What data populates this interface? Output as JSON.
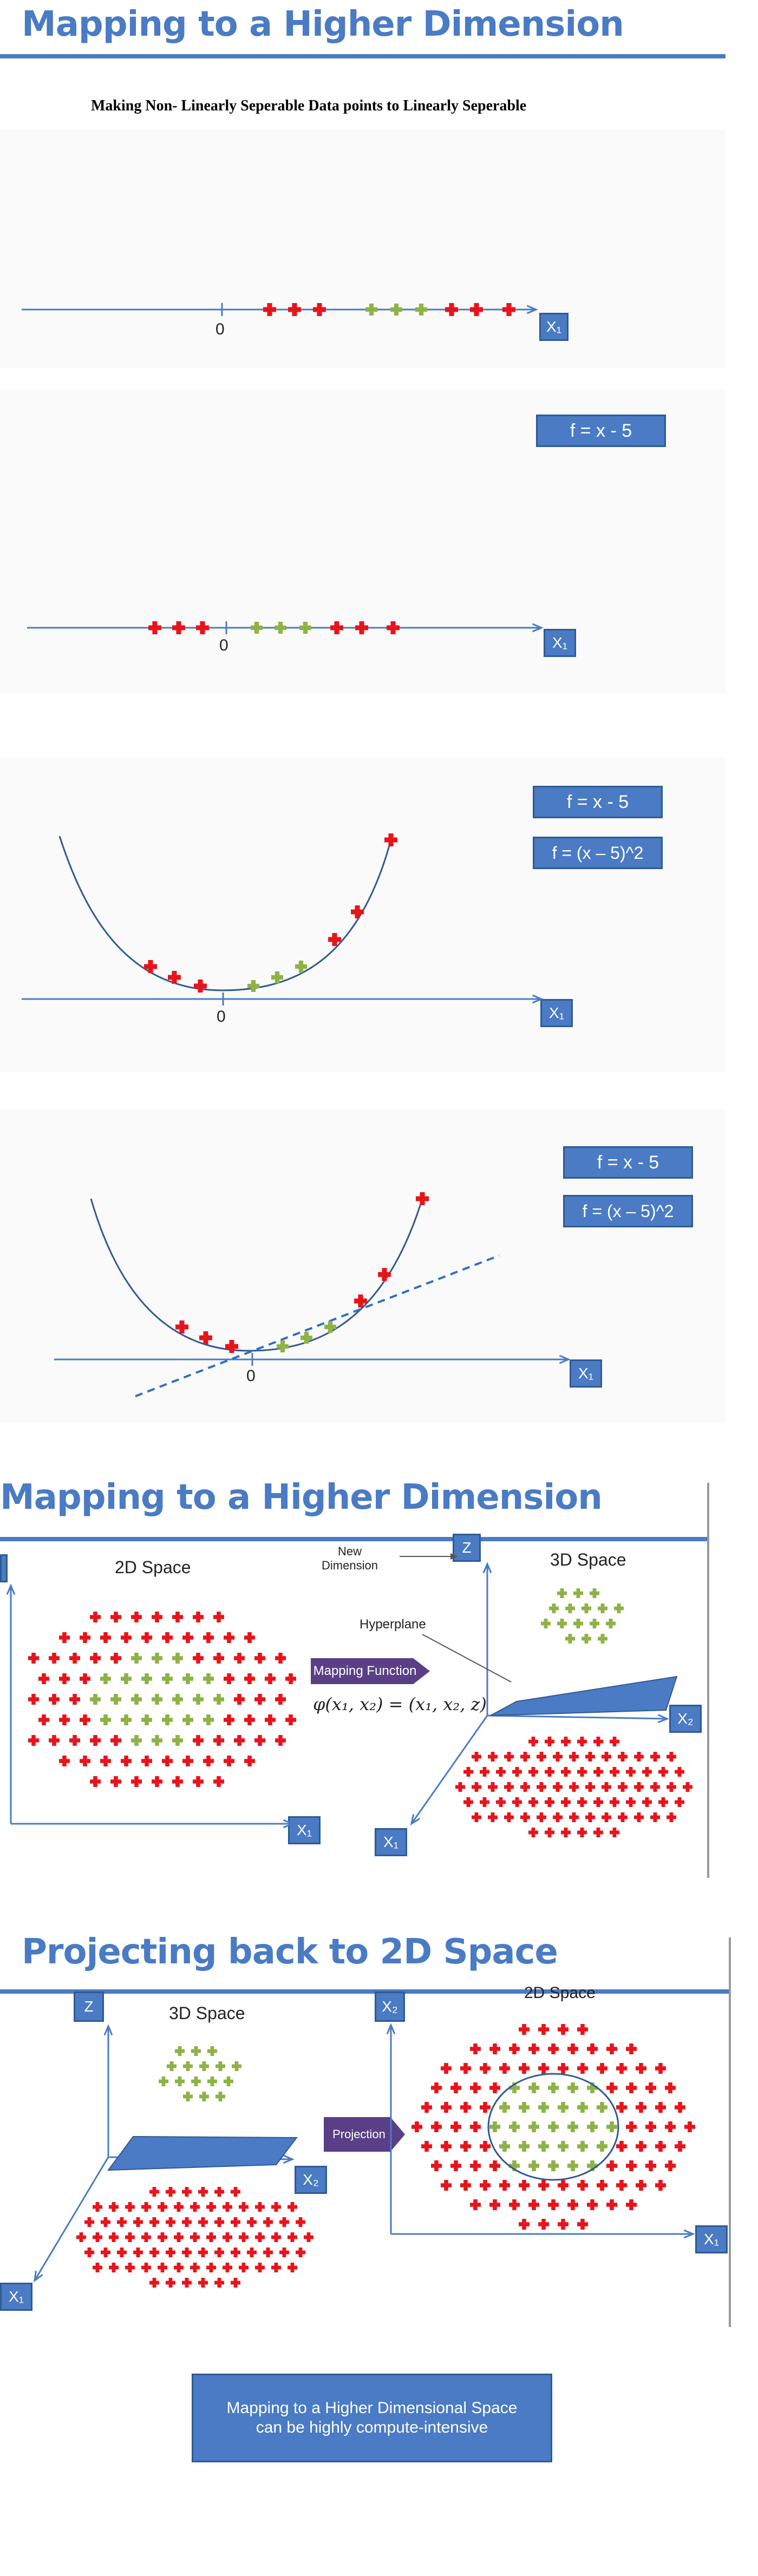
{
  "heading1": "Mapping to a Higher Dimension",
  "subtitle": "Making Non- Linearly Seperable Data points to Linearly Seperable",
  "panel1": {
    "origin": "0",
    "axis": "X₁"
  },
  "panel2": {
    "formula1": "f = x - 5",
    "origin": "0",
    "axis": "X₁"
  },
  "panel3": {
    "formula1": "f = x - 5",
    "formula2": "f = (x – 5)^2",
    "origin": "0",
    "axis": "X₁"
  },
  "panel4": {
    "formula1": "f = x - 5",
    "formula2": "f = (x – 5)^2",
    "origin": "0",
    "axis": "X₁"
  },
  "heading2": "Mapping to a Higher Dimension",
  "mapping": {
    "space2d": "2D Space",
    "space3d": "3D Space",
    "new_dimension": "New\nDimension",
    "hyperplane": "Hyperplane",
    "mapping_function": "Mapping Function",
    "equation": "φ(x₁, x₂) = (x₁, x₂, z)",
    "x1": "X₁",
    "x2": "X₂",
    "z": "Z"
  },
  "heading3": "Projecting back to 2D Space",
  "projection": {
    "space3d": "3D Space",
    "space2d": "2D Space",
    "projection_label": "Projection",
    "z": "Z",
    "x1": "X₁",
    "x2": "X₂"
  },
  "note": "Mapping to a Higher Dimensional Space\ncan be highly compute-intensive",
  "colors": {
    "accent": "#4a7bc4",
    "red": "#e8141b",
    "green": "#8db346",
    "purple": "#5a3f87"
  }
}
